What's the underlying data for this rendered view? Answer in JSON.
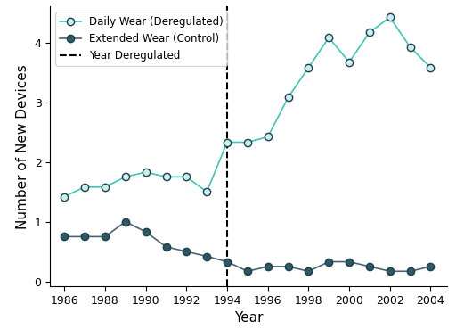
{
  "chart_data": {
    "type": "line",
    "x_label": "Year",
    "y_label": "Number of New Devices",
    "x": [
      1986,
      1987,
      1988,
      1989,
      1990,
      1991,
      1992,
      1993,
      1994,
      1995,
      1996,
      1997,
      1998,
      1999,
      2000,
      2001,
      2002,
      2003,
      2004
    ],
    "series": [
      {
        "name": "Daily Wear (Deregulated)",
        "color": "#3cc8b4",
        "marker": "o",
        "line_style": "solid",
        "values": [
          1.42,
          1.58,
          1.58,
          1.75,
          1.83,
          1.75,
          1.75,
          1.5,
          2.33,
          2.33,
          2.42,
          3.08,
          3.58,
          4.08,
          3.67,
          4.17,
          4.42,
          3.92,
          3.58
        ]
      },
      {
        "name": "Extended Wear (Control)",
        "color": "#4a6470",
        "marker": "o",
        "line_style": "solid",
        "values": [
          0.75,
          0.75,
          0.75,
          1.0,
          0.83,
          0.58,
          0.5,
          0.42,
          0.33,
          0.17,
          0.25,
          0.25,
          0.17,
          0.33,
          0.33,
          0.25,
          0.17,
          0.17,
          0.25
        ]
      }
    ],
    "vertical_line": {
      "x": 1994,
      "name": "Year Deregulated",
      "color": "#000000",
      "line_style": "dashed"
    },
    "xlim": [
      1985.3,
      2004.8
    ],
    "xticks": [
      1986,
      1988,
      1990,
      1992,
      1994,
      1996,
      1998,
      2000,
      2002,
      2004
    ],
    "ylim": [
      -0.08,
      4.6
    ],
    "yticks": [
      0,
      1,
      2,
      3,
      4
    ],
    "legend": "upper left",
    "grid": false
  }
}
